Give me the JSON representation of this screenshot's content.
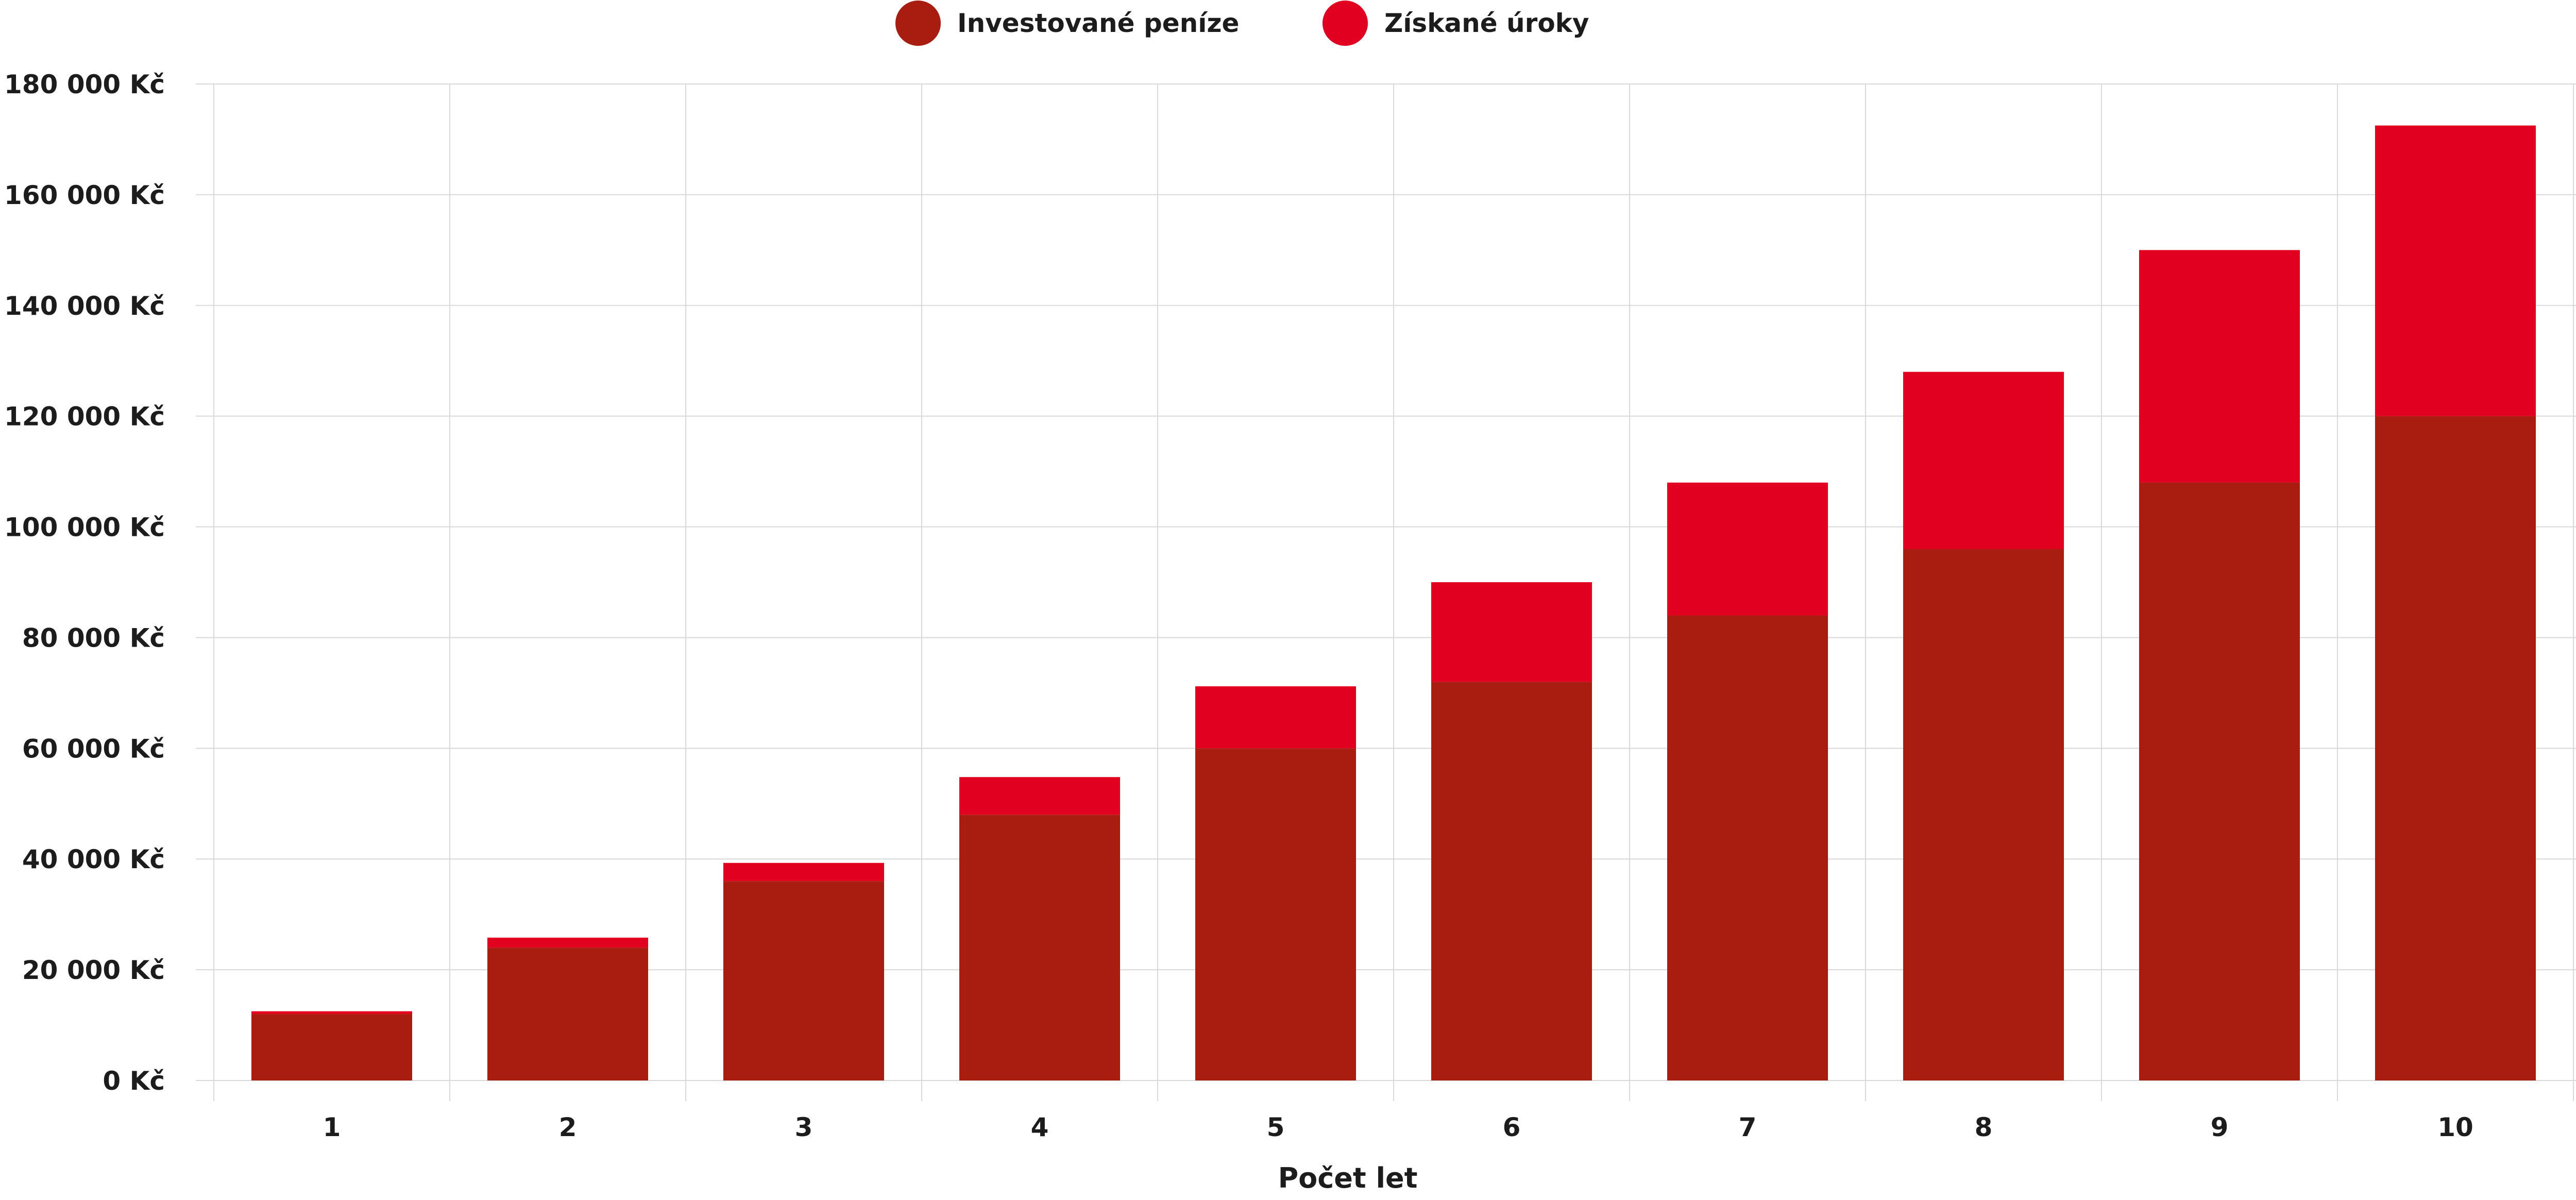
{
  "chart_data": {
    "type": "bar",
    "stacked": true,
    "categories": [
      "1",
      "2",
      "3",
      "4",
      "5",
      "6",
      "7",
      "8",
      "9",
      "10"
    ],
    "series": [
      {
        "name": "Investované peníze",
        "color": "#a91c10",
        "values": [
          12000,
          24000,
          36000,
          48000,
          60000,
          72000,
          84000,
          96000,
          108000,
          120000
        ]
      },
      {
        "name": "Získané úroky",
        "color": "#e1001f",
        "values": [
          500,
          1800,
          3300,
          6800,
          11200,
          18000,
          24000,
          32000,
          42000,
          52500
        ]
      }
    ],
    "xlabel": "Počet let",
    "ylabel": "",
    "ylim": [
      0,
      180000
    ],
    "y_ticks": [
      0,
      20000,
      40000,
      60000,
      80000,
      100000,
      120000,
      140000,
      160000,
      180000
    ],
    "y_tick_labels": [
      "0 Kč",
      "20 000 Kč",
      "40 000 Kč",
      "60 000 Kč",
      "80 000 Kč",
      "100 000 Kč",
      "120 000 Kč",
      "140 000 Kč",
      "160 000 Kč",
      "180 000 Kč"
    ],
    "grid": true,
    "legend_position": "top-center"
  },
  "colors": {
    "grid": "#d9d9d9",
    "text": "#1c1c1c"
  }
}
